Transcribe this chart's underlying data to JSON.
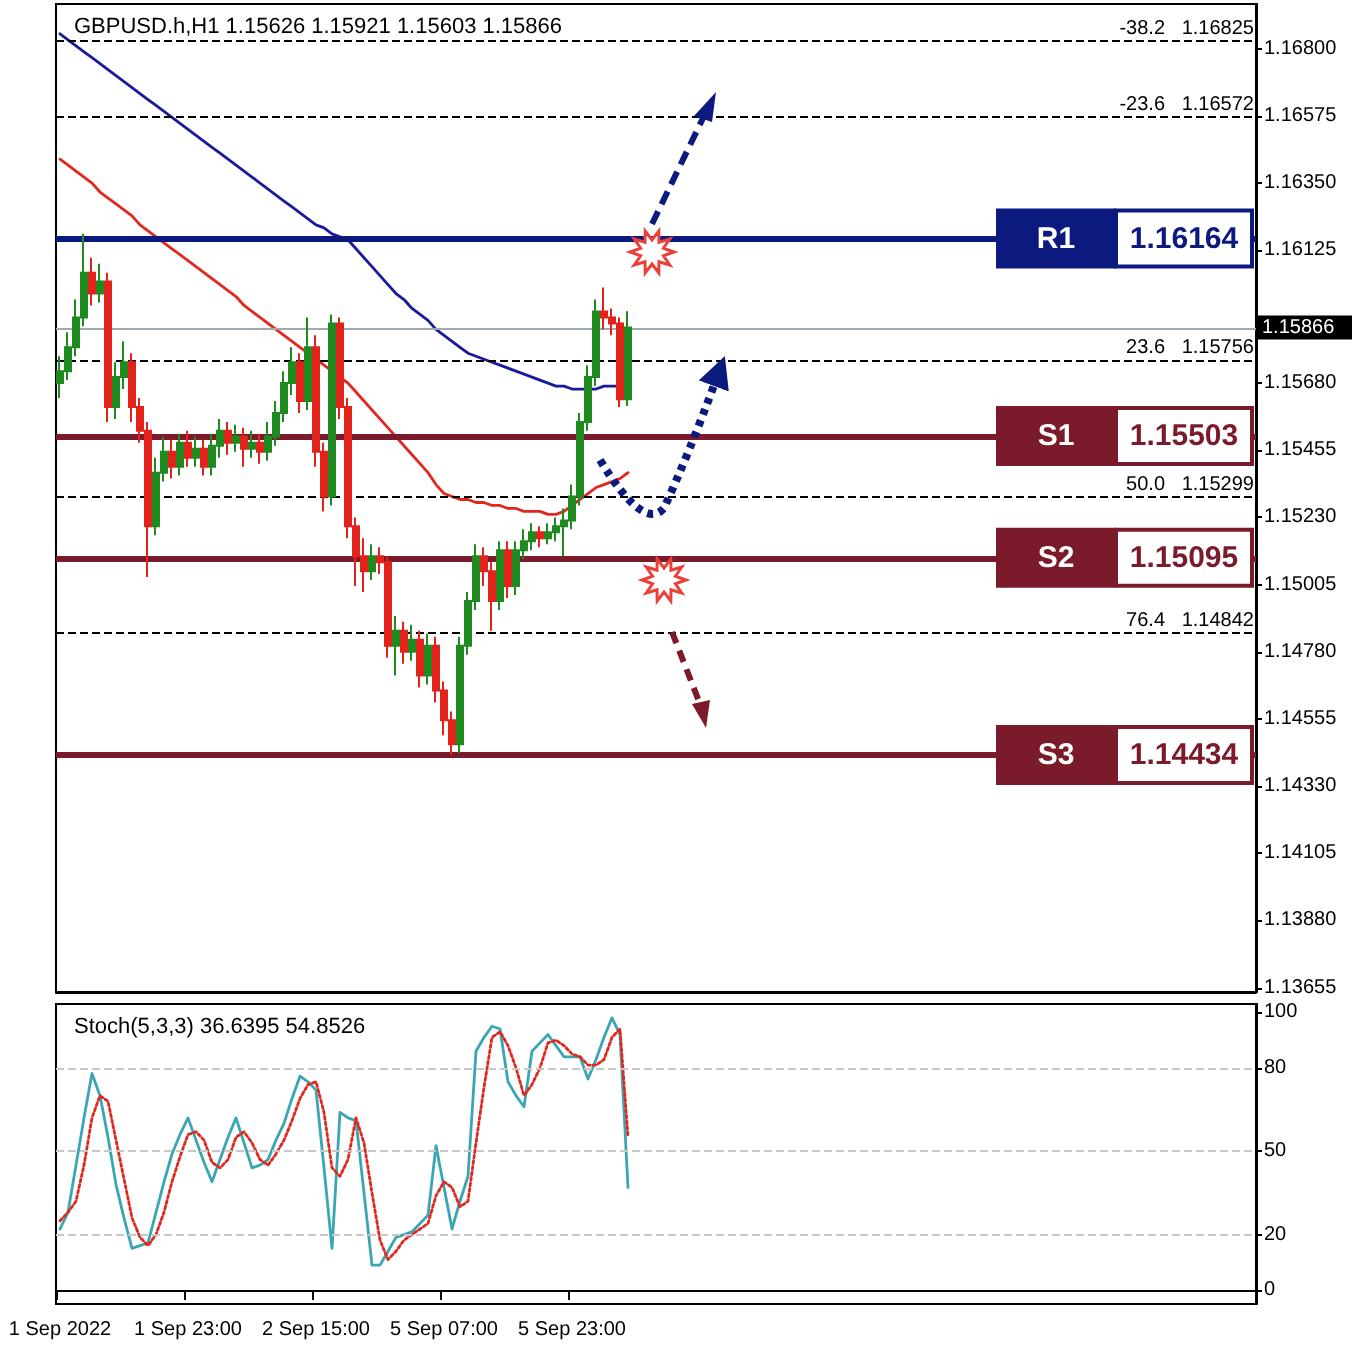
{
  "chart_data": [
    {
      "type": "candlestick",
      "title": "GBPUSD.h,H1 1.15626 1.15921 1.15603 1.15866",
      "categories": [
        null,
        null,
        null,
        null,
        null,
        null,
        null,
        null,
        null,
        null,
        null,
        null,
        null,
        null,
        null,
        null,
        null,
        null,
        null,
        null,
        null,
        null,
        null,
        null,
        null,
        null,
        null,
        null,
        null,
        null,
        null,
        null,
        null,
        null,
        null,
        null,
        null,
        null,
        null,
        null,
        null,
        null,
        null,
        null,
        null,
        null,
        null,
        null,
        null,
        null,
        null,
        null,
        null,
        null,
        null,
        null,
        null,
        null,
        null,
        null,
        null,
        null,
        null,
        null,
        null,
        null,
        null,
        null,
        null,
        null,
        null,
        null,
        null,
        null,
        null,
        null,
        null,
        null,
        null,
        null,
        null,
        null,
        null,
        null,
        null,
        null,
        null,
        null,
        null,
        null,
        null,
        null,
        null,
        null,
        null,
        null,
        null,
        null,
        null,
        null,
        null,
        null,
        null,
        null,
        null,
        null,
        null,
        null,
        null,
        null,
        null,
        null,
        null,
        null,
        null,
        null,
        null,
        null,
        null,
        null,
        null,
        null,
        null,
        null,
        null,
        null,
        null,
        null,
        null,
        null,
        null,
        null,
        null,
        null,
        null,
        null,
        null,
        null,
        null,
        null,
        null,
        null,
        null,
        null,
        null,
        null,
        null,
        null,
        null,
        null
      ],
      "ohlc": [
        [
          1.1568,
          1.1577,
          1.1563,
          1.1572
        ],
        [
          1.1572,
          1.1585,
          1.1569,
          1.158
        ],
        [
          1.158,
          1.1596,
          1.1577,
          1.159
        ],
        [
          1.159,
          1.1618,
          1.1587,
          1.1605
        ],
        [
          1.1605,
          1.161,
          1.1594,
          1.1598
        ],
        [
          1.1598,
          1.1608,
          1.1595,
          1.1602
        ],
        [
          1.1602,
          1.1605,
          1.1555,
          1.156
        ],
        [
          1.156,
          1.1575,
          1.1556,
          1.157
        ],
        [
          1.157,
          1.1582,
          1.1566,
          1.1575
        ],
        [
          1.1575,
          1.1578,
          1.1555,
          1.156
        ],
        [
          1.156,
          1.1563,
          1.1548,
          1.1552
        ],
        [
          1.1552,
          1.1555,
          1.1503,
          1.152
        ],
        [
          1.152,
          1.1543,
          1.1517,
          1.1538
        ],
        [
          1.1538,
          1.155,
          1.1535,
          1.1545
        ],
        [
          1.1545,
          1.1549,
          1.1536,
          1.154
        ],
        [
          1.154,
          1.1551,
          1.1537,
          1.1548
        ],
        [
          1.1548,
          1.1552,
          1.154,
          1.1543
        ],
        [
          1.1543,
          1.155,
          1.154,
          1.1546
        ],
        [
          1.1546,
          1.1549,
          1.1537,
          1.154
        ],
        [
          1.154,
          1.1551,
          1.1537,
          1.1547
        ],
        [
          1.1547,
          1.1556,
          1.1543,
          1.1552
        ],
        [
          1.1552,
          1.1555,
          1.1544,
          1.1548
        ],
        [
          1.1548,
          1.1554,
          1.1545,
          1.155
        ],
        [
          1.155,
          1.1553,
          1.154,
          1.1546
        ],
        [
          1.1546,
          1.1552,
          1.1543,
          1.1548
        ],
        [
          1.1548,
          1.1551,
          1.1541,
          1.1545
        ],
        [
          1.1545,
          1.1555,
          1.1542,
          1.155
        ],
        [
          1.155,
          1.1562,
          1.1547,
          1.1558
        ],
        [
          1.1558,
          1.1572,
          1.1555,
          1.1568
        ],
        [
          1.1568,
          1.158,
          1.1564,
          1.1575
        ],
        [
          1.1575,
          1.1578,
          1.1558,
          1.1562
        ],
        [
          1.1562,
          1.159,
          1.1559,
          1.158
        ],
        [
          1.158,
          1.1584,
          1.154,
          1.1545
        ],
        [
          1.1545,
          1.1548,
          1.1525,
          1.153
        ],
        [
          1.153,
          1.1591,
          1.1527,
          1.1588
        ],
        [
          1.1588,
          1.159,
          1.1556,
          1.156
        ],
        [
          1.156,
          1.1563,
          1.1516,
          1.152
        ],
        [
          1.152,
          1.1523,
          1.15,
          1.151
        ],
        [
          1.151,
          1.1516,
          1.1498,
          1.1505
        ],
        [
          1.1505,
          1.1514,
          1.1502,
          1.151
        ],
        [
          1.151,
          1.1513,
          1.1504,
          1.1508
        ],
        [
          1.1508,
          1.151,
          1.1476,
          1.148
        ],
        [
          1.148,
          1.149,
          1.147,
          1.1485
        ],
        [
          1.1485,
          1.1488,
          1.1474,
          1.1478
        ],
        [
          1.1478,
          1.1487,
          1.1475,
          1.1482
        ],
        [
          1.1482,
          1.1485,
          1.1466,
          1.147
        ],
        [
          1.147,
          1.1484,
          1.1467,
          1.148
        ],
        [
          1.148,
          1.1483,
          1.1461,
          1.1465
        ],
        [
          1.1465,
          1.1468,
          1.145,
          1.1455
        ],
        [
          1.1455,
          1.1458,
          1.14434,
          1.1447
        ],
        [
          1.1447,
          1.1483,
          1.1444,
          1.148
        ],
        [
          1.148,
          1.1498,
          1.1477,
          1.1495
        ],
        [
          1.1495,
          1.1514,
          1.1492,
          1.151
        ],
        [
          1.151,
          1.1513,
          1.15,
          1.1505
        ],
        [
          1.1505,
          1.1508,
          1.1485,
          1.1495
        ],
        [
          1.1495,
          1.1515,
          1.1492,
          1.1512
        ],
        [
          1.1512,
          1.1515,
          1.1496,
          1.15
        ],
        [
          1.15,
          1.1515,
          1.1497,
          1.1512
        ],
        [
          1.1512,
          1.1519,
          1.1509,
          1.1515
        ],
        [
          1.1515,
          1.1521,
          1.1512,
          1.1518
        ],
        [
          1.1518,
          1.152,
          1.1513,
          1.1516
        ],
        [
          1.1516,
          1.1521,
          1.1514,
          1.1518
        ],
        [
          1.1518,
          1.1523,
          1.1515,
          1.152
        ],
        [
          1.152,
          1.1526,
          1.151,
          1.1522
        ],
        [
          1.1522,
          1.1534,
          1.1519,
          1.153
        ],
        [
          1.153,
          1.1558,
          1.1527,
          1.1555
        ],
        [
          1.1555,
          1.1574,
          1.1552,
          1.157
        ],
        [
          1.157,
          1.1596,
          1.1567,
          1.1592
        ],
        [
          1.1592,
          1.16,
          1.1586,
          1.159
        ],
        [
          1.159,
          1.1593,
          1.1584,
          1.1588
        ],
        [
          1.1588,
          1.159,
          1.156,
          1.15626
        ],
        [
          1.15626,
          1.15921,
          1.15603,
          1.15866
        ],
        null,
        null,
        null,
        null,
        null,
        null,
        null,
        null,
        null,
        null,
        null,
        null,
        null,
        null,
        null,
        null,
        null,
        null,
        null,
        null,
        null,
        null,
        null,
        null,
        null,
        null,
        null,
        null,
        null,
        null,
        null,
        null,
        null,
        null,
        null,
        null,
        null,
        null,
        null,
        null,
        null,
        null,
        null,
        null,
        null,
        null,
        null,
        null,
        null,
        null,
        null,
        null,
        null,
        null,
        null,
        null,
        null,
        null,
        null,
        null,
        null,
        null,
        null,
        null,
        null,
        null,
        null,
        null,
        null,
        null,
        null,
        null,
        null,
        null,
        null,
        null,
        null,
        null
      ],
      "series": [
        {
          "type": "line",
          "color": "#1a1a9c",
          "values": [
            1.1685,
            1.1683,
            1.1681,
            1.1679,
            1.1677,
            1.1675,
            1.1673,
            1.1671,
            1.1669,
            1.1667,
            1.1665,
            1.1663,
            1.1661,
            1.1659,
            1.1657,
            1.1655,
            1.1653,
            1.1651,
            1.1649,
            1.1647,
            1.1645,
            1.1643,
            1.1641,
            1.1639,
            1.1637,
            1.1635,
            1.1633,
            1.1631,
            1.1629,
            1.1627,
            1.1625,
            1.1623,
            1.1621,
            1.162,
            1.1618,
            1.1617,
            1.1616,
            1.1613,
            1.161,
            1.1607,
            1.1604,
            1.1601,
            1.1598,
            1.1596,
            1.1593,
            1.1591,
            1.1589,
            1.1586,
            1.1584,
            1.1582,
            1.158,
            1.1578,
            1.1577,
            1.1576,
            1.1575,
            1.1574,
            1.1573,
            1.1572,
            1.1571,
            1.157,
            1.1569,
            1.1568,
            1.1567,
            1.1567,
            1.1566,
            1.1566,
            1.1566,
            1.1566,
            1.1567,
            1.1567,
            1.1567,
            null,
            null,
            null,
            null,
            null,
            null,
            null,
            null,
            null,
            null,
            null,
            null,
            null,
            null,
            null,
            null,
            null,
            null,
            null,
            null,
            null,
            null,
            null,
            null,
            null,
            null,
            null,
            null,
            null,
            null,
            null,
            null,
            null,
            null,
            null,
            null,
            null,
            null,
            null,
            null,
            null,
            null,
            null,
            null,
            null,
            null,
            null,
            null,
            null,
            null,
            null,
            null,
            null,
            null,
            null,
            null,
            null,
            null,
            null,
            null,
            null,
            null,
            null,
            null,
            null,
            null,
            null,
            null,
            null,
            null,
            null,
            null,
            null,
            null,
            null,
            null,
            null,
            null,
            null
          ]
        },
        {
          "type": "line",
          "color": "#e0281e",
          "values": [
            1.1643,
            1.1641,
            1.1639,
            1.1637,
            1.1635,
            1.1632,
            1.163,
            1.1628,
            1.1626,
            1.1624,
            1.1621,
            1.1619,
            1.1617,
            1.1615,
            1.1613,
            1.1611,
            1.1609,
            1.1607,
            1.1605,
            1.1603,
            1.1601,
            1.1599,
            1.1597,
            1.1594,
            1.1592,
            1.159,
            1.1588,
            1.1586,
            1.1584,
            1.1582,
            1.158,
            1.1578,
            1.1576,
            1.1574,
            1.1572,
            1.157,
            1.1568,
            1.1565,
            1.1562,
            1.1559,
            1.1556,
            1.1553,
            1.155,
            1.1547,
            1.1544,
            1.1541,
            1.1538,
            1.1534,
            1.1531,
            1.153,
            1.1529,
            1.1529,
            1.1528,
            1.1528,
            1.1527,
            1.1527,
            1.1526,
            1.1526,
            1.1525,
            1.1525,
            1.1525,
            1.1524,
            1.1524,
            1.1525,
            1.1527,
            1.1529,
            1.1531,
            1.1533,
            1.1534,
            1.1535,
            1.1536,
            1.1538,
            null,
            null,
            null,
            null,
            null,
            null,
            null,
            null,
            null,
            null,
            null,
            null,
            null,
            null,
            null,
            null,
            null,
            null,
            null,
            null,
            null,
            null,
            null,
            null,
            null,
            null,
            null,
            null,
            null,
            null,
            null,
            null,
            null,
            null,
            null,
            null,
            null,
            null,
            null,
            null,
            null,
            null,
            null,
            null,
            null,
            null,
            null,
            null,
            null,
            null,
            null,
            null,
            null,
            null,
            null,
            null,
            null,
            null,
            null,
            null,
            null,
            null,
            null,
            null,
            null,
            null,
            null,
            null,
            null,
            null,
            null,
            null,
            null,
            null,
            null,
            null,
            null,
            null
          ]
        }
      ],
      "ylim": [
        1.1364,
        1.1695
      ],
      "yticks": [
        {
          "value": 1.168,
          "label": "1.16800"
        },
        {
          "value": 1.16575,
          "label": "1.16575"
        },
        {
          "value": 1.1635,
          "label": "1.16350"
        },
        {
          "value": 1.16125,
          "label": "1.16125"
        },
        {
          "value": 1.15905,
          "label": null
        },
        {
          "value": 1.1568,
          "label": "1.15680"
        },
        {
          "value": 1.15455,
          "label": "1.15455"
        },
        {
          "value": 1.1523,
          "label": "1.15230"
        },
        {
          "value": 1.15005,
          "label": "1.15005"
        },
        {
          "value": 1.1478,
          "label": "1.14780"
        },
        {
          "value": 1.14555,
          "label": "1.14555"
        },
        {
          "value": 1.1433,
          "label": "1.14330"
        },
        {
          "value": 1.14105,
          "label": "1.14105"
        },
        {
          "value": 1.1388,
          "label": "1.13880"
        },
        {
          "value": 1.13655,
          "label": "1.13655"
        }
      ],
      "ref_lines": [
        {
          "axis": "y",
          "value": 1.16825,
          "label": "-38.2   1.16825",
          "line_style": "dashed",
          "color": "#000000"
        },
        {
          "axis": "y",
          "value": 1.16572,
          "label": "-23.6   1.16572",
          "line_style": "dashed",
          "color": "#000000"
        },
        {
          "axis": "y",
          "value": 1.15756,
          "label": "23.6   1.15756",
          "line_style": "dashed",
          "color": "#000000"
        },
        {
          "axis": "y",
          "value": 1.15299,
          "label": "50.0   1.15299",
          "line_style": "dashed",
          "color": "#000000"
        },
        {
          "axis": "y",
          "value": 1.14842,
          "label": "76.4   1.14842",
          "line_style": "dashed",
          "color": "#000000"
        },
        {
          "axis": "y",
          "value": 1.15866,
          "color": "#a0a8b0"
        },
        {
          "axis": "y",
          "value": 1.16164,
          "label": "R1",
          "color": "#0c1a80"
        },
        {
          "axis": "y",
          "value": 1.15503,
          "label": "S1",
          "color": "#7a1a2a"
        },
        {
          "axis": "y",
          "value": 1.15095,
          "label": "S2",
          "color": "#7a1a2a"
        },
        {
          "axis": "y",
          "value": 1.14434,
          "label": "S3",
          "color": "#7a1a2a"
        }
      ],
      "annotations": [
        "1.15866",
        "1.16164",
        "1.15503",
        "1.15095",
        "1.14434"
      ],
      "tick_labels": "y"
    },
    {
      "type": "line",
      "title": "Stoch(5,3,3) 36.6395 54.8526",
      "categories": [
        "1 Sep 2022",
        null,
        null,
        null,
        null,
        null,
        null,
        null,
        null,
        null,
        null,
        null,
        null,
        null,
        null,
        null,
        "1 Sep 23:00",
        null,
        null,
        null,
        null,
        null,
        null,
        null,
        null,
        null,
        null,
        null,
        null,
        null,
        null,
        null,
        "2 Sep 15:00",
        null,
        null,
        null,
        null,
        null,
        null,
        null,
        null,
        null,
        null,
        null,
        null,
        null,
        null,
        null,
        "5 Sep 07:00",
        null,
        null,
        null,
        null,
        null,
        null,
        null,
        null,
        null,
        null,
        null,
        null,
        null,
        null,
        null,
        "5 Sep 23:00",
        null,
        null,
        null,
        null,
        null,
        null,
        null,
        null,
        null,
        null,
        null,
        null,
        null,
        null,
        null,
        null,
        null,
        null,
        null,
        null,
        null,
        null,
        null,
        null,
        null,
        null,
        null,
        null,
        null,
        null,
        null,
        null,
        null,
        null,
        null,
        null,
        null,
        null,
        null,
        null,
        null,
        null,
        null,
        null,
        null,
        null,
        null,
        null,
        null,
        null,
        null,
        null,
        null,
        null,
        null,
        null,
        null,
        null,
        null,
        null,
        null,
        null,
        null,
        null,
        null,
        null,
        null,
        null,
        null,
        null,
        null,
        null,
        null,
        null,
        null,
        null,
        null,
        null,
        null,
        null,
        null,
        null,
        null,
        null,
        null
      ],
      "series": [
        {
          "color": "#3aa6b4",
          "line_style": "solid",
          "values": [
            22,
            28,
            45,
            62,
            78,
            70,
            55,
            38,
            26,
            15,
            16,
            17,
            28,
            39,
            49,
            56,
            62,
            54,
            46,
            39,
            47,
            55,
            62,
            53,
            44,
            45,
            47,
            54,
            60,
            69,
            77,
            75,
            72,
            44,
            15,
            64,
            62,
            61,
            35,
            9,
            9,
            14,
            19,
            20,
            21,
            24,
            27,
            52,
            37,
            22,
            32,
            41,
            86,
            91,
            95,
            94,
            75,
            70,
            66,
            86,
            89,
            92,
            88,
            84,
            84,
            84,
            76,
            83,
            91,
            98,
            92,
            37,
            null,
            null,
            null,
            null,
            null,
            null,
            null,
            null,
            null,
            null,
            null,
            null,
            null,
            null,
            null,
            null,
            null,
            null,
            null,
            null,
            null,
            null,
            null,
            null,
            null,
            null,
            null,
            null,
            null,
            null,
            null,
            null,
            null,
            null,
            null,
            null,
            null,
            null,
            null,
            null,
            null,
            null,
            null,
            null,
            null,
            null,
            null,
            null,
            null,
            null,
            null,
            null,
            null,
            null,
            null,
            null,
            null,
            null,
            null,
            null,
            null,
            null,
            null,
            null,
            null,
            null,
            null,
            null,
            null,
            null,
            null,
            null,
            null,
            null,
            null,
            null,
            null,
            null
          ]
        },
        {
          "color": "#e0281e",
          "line_style": "dotted",
          "values": [
            25,
            28,
            32,
            45,
            62,
            70,
            68,
            54,
            40,
            26,
            19,
            16,
            20,
            28,
            39,
            48,
            56,
            57,
            54,
            46,
            44,
            47,
            55,
            57,
            53,
            47,
            45,
            49,
            54,
            61,
            69,
            74,
            75,
            64,
            44,
            41,
            47,
            62,
            53,
            35,
            18,
            11,
            14,
            18,
            20,
            22,
            24,
            34,
            39,
            37,
            30,
            32,
            53,
            73,
            91,
            93,
            88,
            80,
            70,
            74,
            80,
            89,
            90,
            88,
            85,
            84,
            81,
            81,
            83,
            91,
            94,
            55,
            null,
            null,
            null,
            null,
            null,
            null,
            null,
            null,
            null,
            null,
            null,
            null,
            null,
            null,
            null,
            null,
            null,
            null,
            null,
            null,
            null,
            null,
            null,
            null,
            null,
            null,
            null,
            null,
            null,
            null,
            null,
            null,
            null,
            null,
            null,
            null,
            null,
            null,
            null,
            null,
            null,
            null,
            null,
            null,
            null,
            null,
            null,
            null,
            null,
            null,
            null,
            null,
            null,
            null,
            null,
            null,
            null,
            null,
            null,
            null,
            null,
            null,
            null,
            null,
            null,
            null,
            null,
            null,
            null,
            null,
            null,
            null,
            null,
            null,
            null,
            null,
            null,
            null
          ]
        }
      ],
      "ylim": [
        -5,
        103
      ],
      "yticks": [
        0,
        20,
        50,
        80,
        100
      ],
      "ref_lines": [
        {
          "axis": "y",
          "value": 20,
          "line_style": "dashed",
          "color": "#c8c8c8"
        },
        {
          "axis": "y",
          "value": 50,
          "line_style": "dashed",
          "color": "#c8c8c8"
        },
        {
          "axis": "y",
          "value": 80,
          "line_style": "dashed",
          "color": "#c8c8c8"
        }
      ]
    }
  ]
}
